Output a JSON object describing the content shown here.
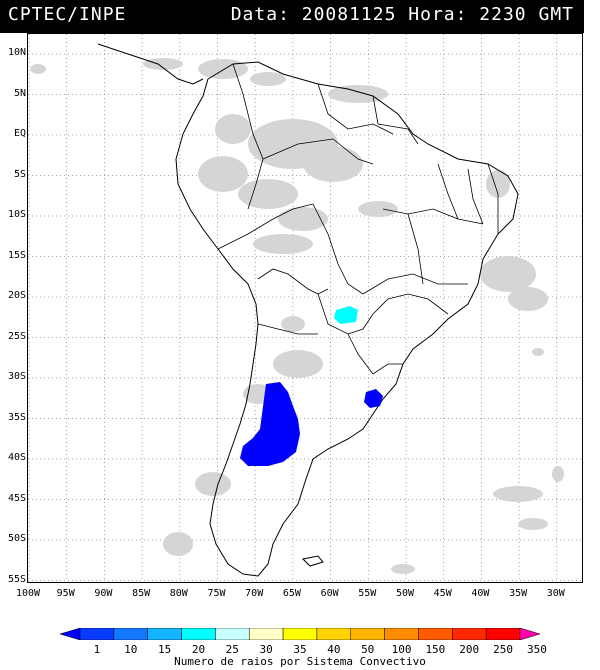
{
  "header": {
    "left": "CPTEC/INPE",
    "right": "Data: 20081125 Hora: 2230 GMT"
  },
  "lat_labels": [
    "10N",
    "5N",
    "EQ",
    "5S",
    "10S",
    "15S",
    "20S",
    "25S",
    "30S",
    "35S",
    "40S",
    "45S",
    "50S",
    "55S"
  ],
  "lon_labels": [
    "100W",
    "95W",
    "90W",
    "85W",
    "80W",
    "75W",
    "70W",
    "65W",
    "60W",
    "55W",
    "50W",
    "45W",
    "40W",
    "35W",
    "30W"
  ],
  "colorbar": {
    "labels": [
      "1",
      "10",
      "15",
      "20",
      "25",
      "30",
      "35",
      "40",
      "50",
      "100",
      "150",
      "200",
      "250",
      "350"
    ],
    "colors": [
      "#0000ff",
      "#0a3cff",
      "#1478ff",
      "#14b4ff",
      "#00ffff",
      "#c8ffff",
      "#ffffc8",
      "#ffff00",
      "#ffd200",
      "#ffb400",
      "#ff8c00",
      "#ff5a00",
      "#ff2800",
      "#ff0000",
      "#ff00aa"
    ],
    "title": "Numero de raios por Sistema Convectivo"
  },
  "colors": {
    "cloud": "#d4d4d4",
    "border": "#000000",
    "lightning_blue": "#0000ff",
    "lightning_cyan": "#00ffff"
  }
}
